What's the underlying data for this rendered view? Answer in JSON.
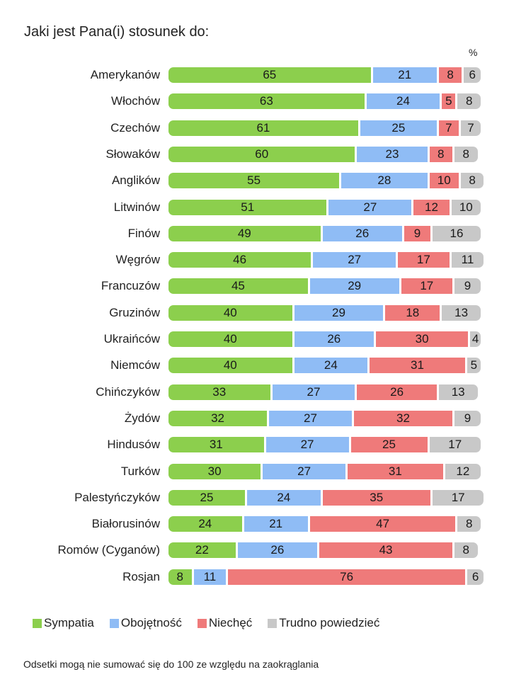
{
  "chart_data": {
    "type": "bar",
    "orientation": "horizontal-stacked",
    "title": "Jaki jest Pana(i) stosunek do:",
    "unit": "%",
    "categories": [
      "Amerykanów",
      "Włochów",
      "Czechów",
      "Słowaków",
      "Anglików",
      "Litwinów",
      "Finów",
      "Węgrów",
      "Francuzów",
      "Gruzinów",
      "Ukraińców",
      "Niemców",
      "Chińczyków",
      "Żydów",
      "Hindusów",
      "Turków",
      "Palestyńczyków",
      "Białorusinów",
      "Romów (Cyganów)",
      "Rosjan"
    ],
    "series": [
      {
        "name": "Sympatia",
        "color": "#8ccf4d",
        "values": [
          65,
          63,
          61,
          60,
          55,
          51,
          49,
          46,
          45,
          40,
          40,
          40,
          33,
          32,
          31,
          30,
          25,
          24,
          22,
          8
        ]
      },
      {
        "name": "Obojętność",
        "color": "#8fbcf5",
        "values": [
          21,
          24,
          25,
          23,
          28,
          27,
          26,
          27,
          29,
          29,
          26,
          24,
          27,
          27,
          27,
          27,
          24,
          21,
          26,
          11
        ]
      },
      {
        "name": "Niechęć",
        "color": "#ef7a7a",
        "values": [
          8,
          5,
          7,
          8,
          10,
          12,
          9,
          17,
          17,
          18,
          30,
          31,
          26,
          32,
          25,
          31,
          35,
          47,
          43,
          76
        ]
      },
      {
        "name": "Trudno powiedzieć",
        "color": "#c8c8c8",
        "values": [
          6,
          8,
          7,
          8,
          8,
          10,
          16,
          11,
          9,
          13,
          4,
          5,
          13,
          9,
          17,
          12,
          17,
          8,
          8,
          6
        ]
      }
    ],
    "xlim": [
      0,
      100
    ],
    "legend": "bottom-left",
    "note": "Odsetki mogą nie sumować się do 100 ze względu na zaokrąglania"
  }
}
